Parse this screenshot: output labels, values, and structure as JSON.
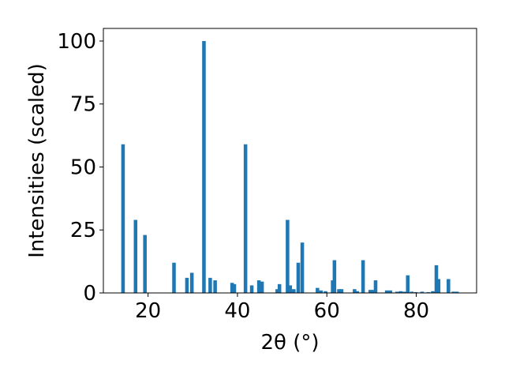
{
  "chart_data": {
    "type": "bar",
    "xlabel": "2θ (°)",
    "ylabel": "Intensities (scaled)",
    "xlim": [
      10,
      93.5
    ],
    "ylim": [
      0,
      105
    ],
    "x_ticks": [
      20,
      40,
      60,
      80
    ],
    "y_ticks": [
      0,
      25,
      50,
      75,
      100
    ],
    "bar_width": 0.8,
    "bar_color": "#1f77b4",
    "grid": false,
    "legend": "none",
    "x": [
      14.4,
      17.2,
      19.3,
      25.8,
      28.7,
      29.8,
      32.5,
      33.9,
      35.0,
      38.8,
      39.3,
      41.8,
      43.2,
      44.8,
      45.5,
      48.9,
      49.4,
      51.2,
      51.8,
      52.6,
      53.6,
      54.5,
      57.9,
      58.7,
      59.7,
      61.3,
      61.7,
      62.7,
      63.3,
      66.2,
      66.8,
      68.1,
      69.7,
      70.3,
      70.9,
      73.4,
      74.2,
      75.7,
      76.5,
      77.3,
      78.1,
      79.0,
      79.9,
      81.3,
      82.7,
      83.7,
      84.5,
      85.0,
      87.2,
      88.3,
      89.1
    ],
    "values": [
      59,
      29,
      23,
      12,
      6,
      8,
      100,
      6,
      5,
      4,
      3.5,
      59,
      3,
      5,
      4.5,
      1.5,
      3.5,
      29,
      3,
      1.5,
      12,
      20,
      2,
      1,
      0.7,
      5,
      13,
      1.5,
      1.5,
      1.5,
      0.7,
      13,
      1.2,
      1.2,
      5,
      1,
      1,
      0.5,
      0.7,
      0.5,
      7,
      0.5,
      0.3,
      0.5,
      0.3,
      0.7,
      11,
      5.5,
      5.5,
      0.5,
      0.5
    ]
  }
}
